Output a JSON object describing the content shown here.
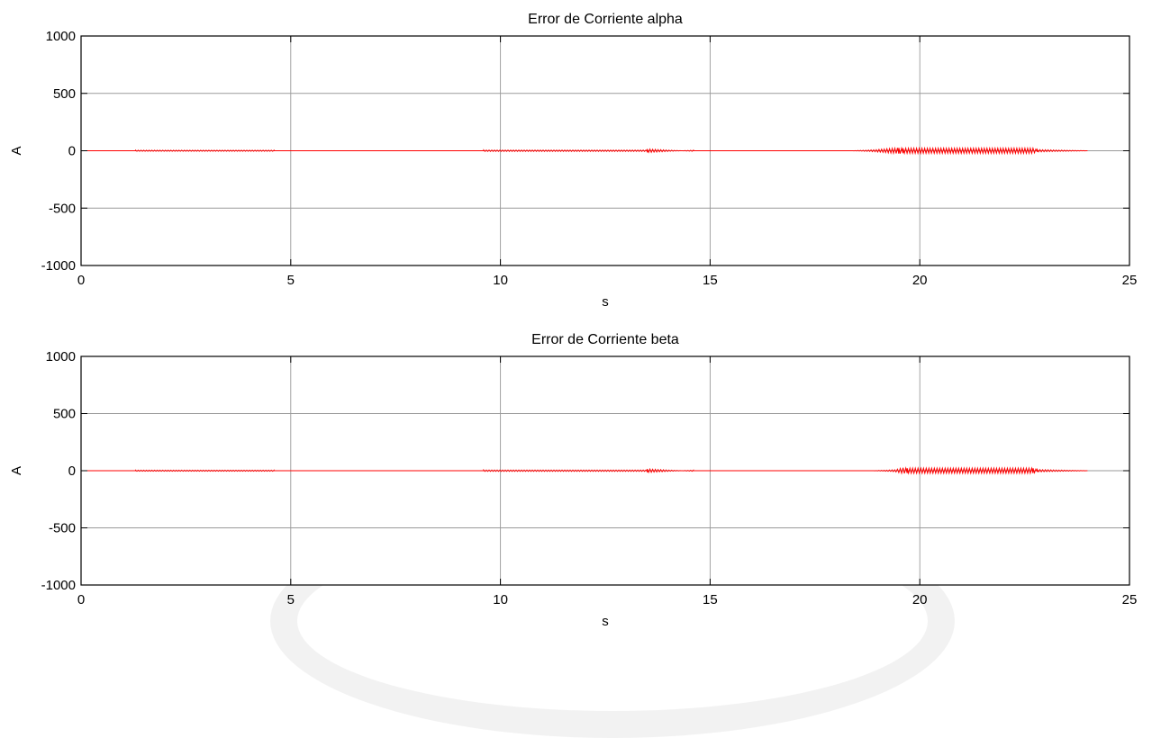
{
  "figure": {
    "background": "#ffffff"
  },
  "chart_data": [
    {
      "type": "line",
      "title": "Error de Corriente alpha",
      "xlabel": "s",
      "ylabel": "A",
      "xlim": [
        0,
        25
      ],
      "ylim": [
        -1000,
        1000
      ],
      "xticks": [
        0,
        5,
        10,
        15,
        20,
        25
      ],
      "xtick_labels": [
        "0",
        "5",
        "10",
        "15",
        "20",
        "25"
      ],
      "yticks": [
        1000,
        500,
        0,
        -500,
        -1000
      ],
      "ytick_labels": [
        "1000",
        "500",
        "0",
        "-500",
        "-1000"
      ],
      "grid": true,
      "series": [
        {
          "color": "#ff0000",
          "x": [
            0,
            1.3,
            1.3,
            4.6,
            4.6,
            9.6,
            9.6,
            13.5,
            13.5,
            14.6,
            14.6,
            18.4,
            18.9,
            19.5,
            19.6,
            22.7,
            22.8,
            24.0
          ],
          "y": [
            0,
            0,
            5,
            5,
            0,
            0,
            6,
            6,
            -15,
            5,
            0,
            0,
            8,
            25,
            22,
            22,
            10,
            0
          ]
        }
      ]
    },
    {
      "type": "line",
      "title": "Error de Corriente beta",
      "xlabel": "s",
      "ylabel": "A",
      "xlim": [
        0,
        25
      ],
      "ylim": [
        -1000,
        1000
      ],
      "xticks": [
        0,
        5,
        10,
        15,
        20,
        25
      ],
      "xtick_labels": [
        "0",
        "5",
        "10",
        "15",
        "20",
        "25"
      ],
      "yticks": [
        1000,
        500,
        0,
        -500,
        -1000
      ],
      "ytick_labels": [
        "1000",
        "500",
        "0",
        "-500",
        "-1000"
      ],
      "grid": true,
      "series": [
        {
          "color": "#ff0000",
          "x": [
            0,
            1.3,
            1.3,
            4.6,
            4.6,
            9.6,
            9.6,
            13.5,
            13.5,
            14.6,
            14.6,
            18.9,
            19.4,
            19.6,
            19.7,
            22.7,
            22.8,
            24.0
          ],
          "y": [
            0,
            0,
            5,
            5,
            0,
            0,
            6,
            6,
            -15,
            5,
            0,
            0,
            8,
            25,
            22,
            22,
            10,
            0
          ]
        }
      ]
    }
  ]
}
